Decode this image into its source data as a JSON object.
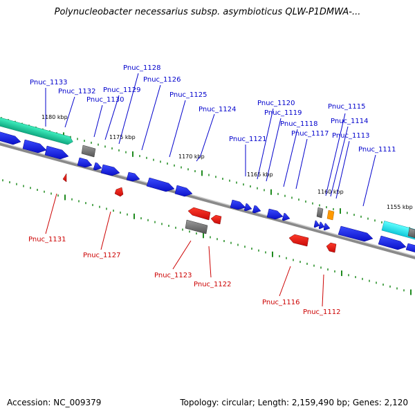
{
  "title": "Polynucleobacter necessarius subsp. asymbioticus QLW-P1DMWA-...",
  "footer": {
    "accession": "Accession: NC_009379",
    "summary": "Topology: circular; Length: 2,159,490 bp; Genes: 2,120"
  },
  "colors": {
    "forward_gene": "#0a14dc",
    "reverse_gene": "#e8100e",
    "label_forward": "#0000cc",
    "label_reverse": "#cc0000",
    "tick": "#1e8a1e",
    "backbone": "#9a9a9a",
    "rna_gene": "#707070",
    "teal_feature": "#19c8a0",
    "cyan_feature": "#20e0e8",
    "orange_feature": "#ff9900"
  },
  "kbp_markers": [
    "1180 kbp",
    "1175 kbp",
    "1170 kbp",
    "1165 kbp",
    "1160 kbp",
    "1155 kbp"
  ],
  "forward_gene_labels": [
    "Pnuc_1133",
    "Pnuc_1132",
    "Pnuc_1130",
    "Pnuc_1129",
    "Pnuc_1128",
    "Pnuc_1126",
    "Pnuc_1125",
    "Pnuc_1124",
    "Pnuc_1121",
    "Pnuc_1120",
    "Pnuc_1119",
    "Pnuc_1118",
    "Pnuc_1117",
    "Pnuc_1115",
    "Pnuc_1114",
    "Pnuc_1113",
    "Pnuc_1111"
  ],
  "reverse_gene_labels": [
    "Pnuc_1131",
    "Pnuc_1127",
    "Pnuc_1123",
    "Pnuc_1122",
    "Pnuc_1116",
    "Pnuc_1112"
  ]
}
